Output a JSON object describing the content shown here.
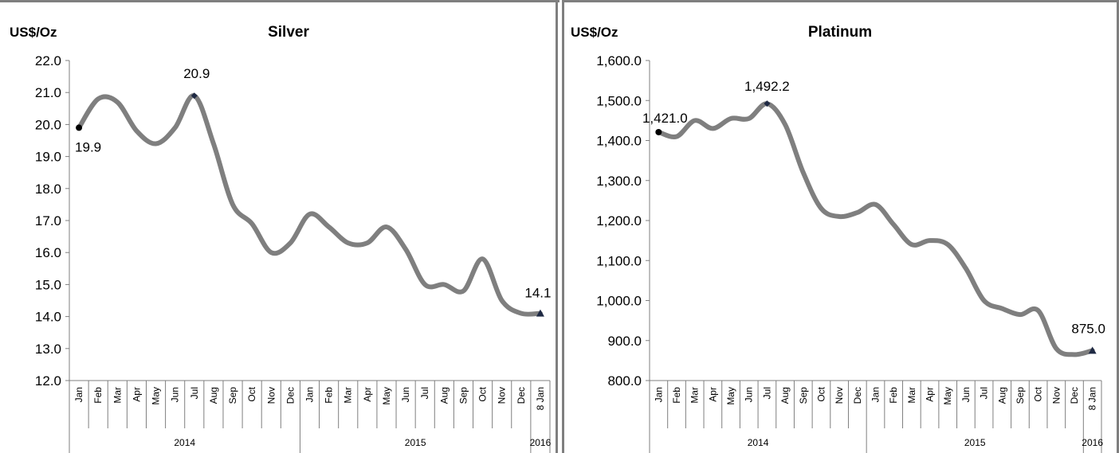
{
  "chart_data": [
    {
      "type": "line",
      "title": "Silver",
      "ylabel": "US$/Oz",
      "ylim": [
        12.0,
        22.0
      ],
      "y_ticks": [
        "12.0",
        "13.0",
        "14.0",
        "15.0",
        "16.0",
        "17.0",
        "18.0",
        "19.0",
        "20.0",
        "21.0",
        "22.0"
      ],
      "categories": [
        "Jan",
        "Feb",
        "Mar",
        "Apr",
        "May",
        "Jun",
        "Jul",
        "Aug",
        "Sep",
        "Oct",
        "Nov",
        "Dec",
        "Jan",
        "Feb",
        "Mar",
        "Apr",
        "May",
        "Jun",
        "Jul",
        "Aug",
        "Sep",
        "Oct",
        "Nov",
        "Dec",
        "8 Jan"
      ],
      "years": [
        {
          "label": "2014",
          "start": 0,
          "end": 11
        },
        {
          "label": "2015",
          "start": 12,
          "end": 23
        },
        {
          "label": "2016",
          "start": 24,
          "end": 24
        }
      ],
      "values": [
        19.9,
        20.8,
        20.7,
        19.8,
        19.4,
        19.9,
        20.9,
        19.4,
        17.5,
        16.9,
        16.0,
        16.3,
        17.2,
        16.8,
        16.3,
        16.3,
        16.8,
        16.1,
        15.0,
        15.0,
        14.8,
        15.8,
        14.5,
        14.1,
        14.1
      ],
      "data_labels": [
        {
          "index": 0,
          "text": "19.9"
        },
        {
          "index": 6,
          "text": "20.9"
        },
        {
          "index": 24,
          "text": "14.1"
        }
      ],
      "grid": false,
      "legend": "none"
    },
    {
      "type": "line",
      "title": "Platinum",
      "ylabel": "US$/Oz",
      "ylim": [
        800.0,
        1600.0
      ],
      "y_ticks": [
        "800.0",
        "900.0",
        "1,000.0",
        "1,100.0",
        "1,200.0",
        "1,300.0",
        "1,400.0",
        "1,500.0",
        "1,600.0"
      ],
      "categories": [
        "Jan",
        "Feb",
        "Mar",
        "Apr",
        "May",
        "Jun",
        "Jul",
        "Aug",
        "Sep",
        "Oct",
        "Nov",
        "Dec",
        "Jan",
        "Feb",
        "Mar",
        "Apr",
        "May",
        "Jun",
        "Jul",
        "Aug",
        "Sep",
        "Oct",
        "Nov",
        "Dec",
        "8 Jan"
      ],
      "years": [
        {
          "label": "2014",
          "start": 0,
          "end": 11
        },
        {
          "label": "2015",
          "start": 12,
          "end": 23
        },
        {
          "label": "2016",
          "start": 24,
          "end": 24
        }
      ],
      "values": [
        1421.0,
        1410.0,
        1450.0,
        1430.0,
        1455.0,
        1455.0,
        1492.2,
        1440.0,
        1320.0,
        1230.0,
        1210.0,
        1220.0,
        1240.0,
        1190.0,
        1140.0,
        1150.0,
        1140.0,
        1080.0,
        1000.0,
        980.0,
        965.0,
        975.0,
        880.0,
        865.0,
        875.0
      ],
      "data_labels": [
        {
          "index": 0,
          "text": "1,421.0"
        },
        {
          "index": 6,
          "text": "1,492.2"
        },
        {
          "index": 24,
          "text": "875.0"
        }
      ],
      "grid": false,
      "legend": "none"
    }
  ],
  "colors": {
    "series_line": "#7f7f7f",
    "marker": "#1f2a44",
    "frame": "#7f7f7f"
  }
}
